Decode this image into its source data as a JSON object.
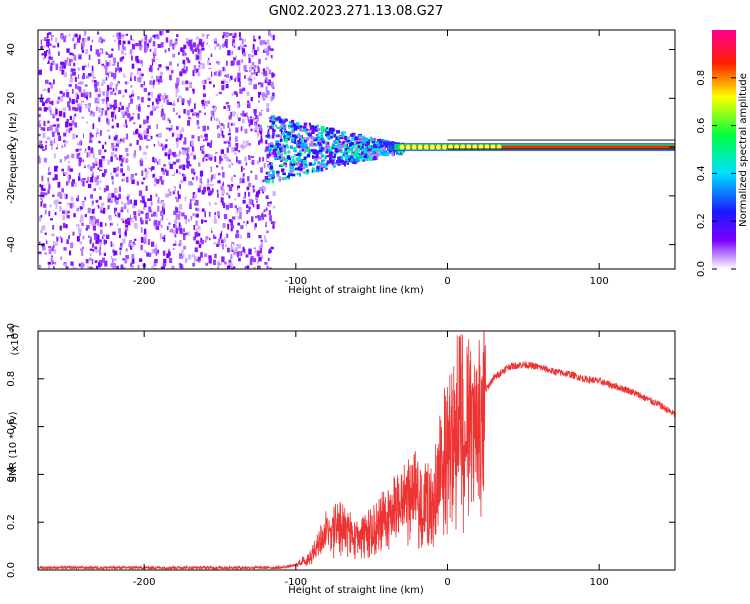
{
  "title": "GN02.2023.271.13.08.G27",
  "chart_data": [
    {
      "type": "heatmap",
      "xlabel": "Height of straight line (km)",
      "ylabel": "Frequency (Hz)",
      "xlim": [
        -270,
        150
      ],
      "ylim": [
        -50,
        48
      ],
      "xticks": [
        -200,
        -100,
        0,
        100
      ],
      "yticks": [
        -40,
        -20,
        0,
        20,
        40
      ],
      "colorbar": {
        "label": "Normalized spectral amplitude",
        "range": [
          0,
          1
        ],
        "ticks": [
          "0.0",
          "0.2",
          "0.4",
          "0.6",
          "0.8"
        ]
      },
      "description": {
        "noise_region_x": [
          -270,
          -115
        ],
        "signal_line_frequency": 0,
        "signal_onset_x": -120
      }
    },
    {
      "type": "line",
      "xlabel": "Height of straight line (km)",
      "ylabel": "SNR (10 * v/v)",
      "scale_label": "(x10",
      "scale_exp": "4",
      "scale_close": ")",
      "xlim": [
        -270,
        150
      ],
      "ylim": [
        0,
        1.0
      ],
      "xticks": [
        -200,
        -100,
        0,
        100
      ],
      "yticks": [
        "0.0",
        "0.2",
        "0.4",
        "0.6",
        "0.8",
        "1.0"
      ],
      "color": "#ee3333",
      "series": [
        {
          "name": "SNR",
          "x": [
            -270,
            -200,
            -110,
            -100,
            -90,
            -80,
            -70,
            -60,
            -50,
            -40,
            -30,
            -20,
            -10,
            -5,
            0,
            5,
            10,
            15,
            20,
            25,
            30,
            40,
            50,
            60,
            70,
            80,
            90,
            100,
            110,
            120,
            130,
            140,
            150
          ],
          "y": [
            0.01,
            0.01,
            0.01,
            0.02,
            0.06,
            0.18,
            0.2,
            0.15,
            0.18,
            0.25,
            0.3,
            0.35,
            0.3,
            0.5,
            0.55,
            0.65,
            0.6,
            0.7,
            0.65,
            0.75,
            0.8,
            0.85,
            0.86,
            0.85,
            0.83,
            0.82,
            0.8,
            0.79,
            0.77,
            0.75,
            0.72,
            0.69,
            0.65
          ]
        }
      ]
    }
  ]
}
